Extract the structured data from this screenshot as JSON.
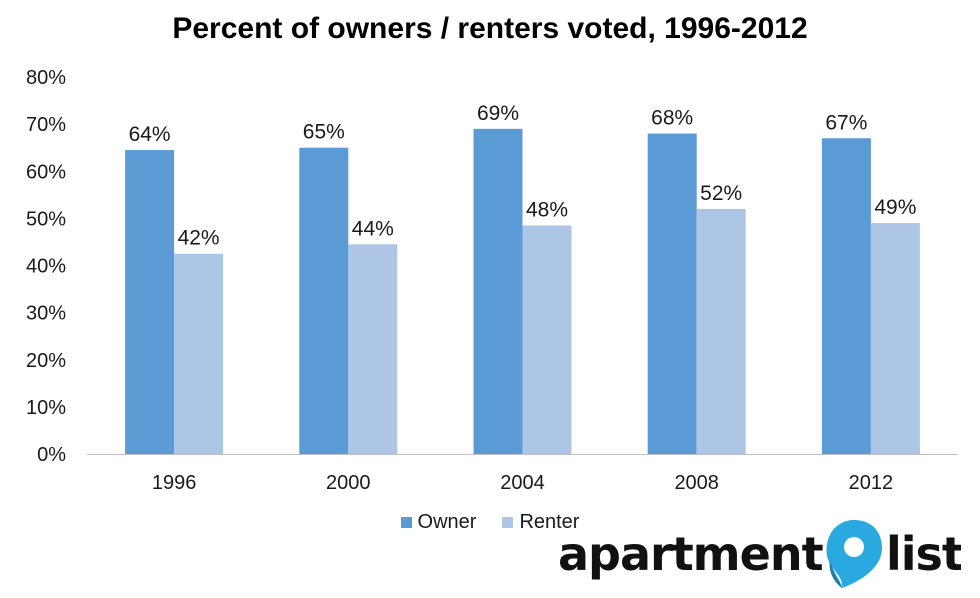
{
  "chart_data": {
    "type": "bar",
    "title": "Percent of owners / renters voted, 1996-2012",
    "xlabel": "",
    "ylabel": "",
    "categories": [
      "1996",
      "2000",
      "2004",
      "2008",
      "2012"
    ],
    "series": [
      {
        "name": "Owner",
        "values": [
          64.5,
          65,
          69,
          68,
          67
        ],
        "labels": [
          "64%",
          "65%",
          "69%",
          "68%",
          "67%"
        ],
        "color": "#5b9bd5"
      },
      {
        "name": "Renter",
        "values": [
          42.5,
          44.5,
          48.5,
          52,
          49
        ],
        "labels": [
          "42%",
          "44%",
          "48%",
          "52%",
          "49%"
        ],
        "color": "#adc6e6"
      }
    ],
    "ylim": [
      0,
      80
    ],
    "yticks": [
      "0%",
      "10%",
      "20%",
      "30%",
      "40%",
      "50%",
      "60%",
      "70%",
      "80%"
    ],
    "ytick_values": [
      0,
      10,
      20,
      30,
      40,
      50,
      60,
      70,
      80
    ],
    "grid": false,
    "legend_position": "bottom"
  },
  "logo": {
    "word_left": "apartment",
    "word_right": "list",
    "pin_color": "#29a9df",
    "text_color": "#111111"
  }
}
